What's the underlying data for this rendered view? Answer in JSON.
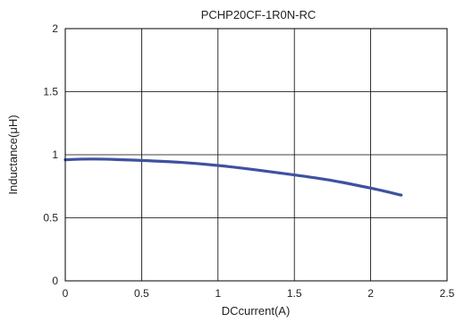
{
  "chart_data": {
    "type": "line",
    "title": "PCHP20CF-1R0N-RC",
    "xlabel": "DCcurrent(A)",
    "ylabel": "Inductance(μH)",
    "xlim": [
      0,
      2.5
    ],
    "ylim": [
      0,
      2
    ],
    "x_ticks": [
      "0",
      "0.5",
      "1",
      "1.5",
      "2",
      "2.5"
    ],
    "y_ticks": [
      "0",
      "0.5",
      "1",
      "1.5",
      "2"
    ],
    "grid": true,
    "series": [
      {
        "color": "#3f51a0",
        "points": [
          [
            0,
            0.96
          ],
          [
            0.1,
            0.965
          ],
          [
            0.25,
            0.965
          ],
          [
            0.5,
            0.955
          ],
          [
            0.75,
            0.94
          ],
          [
            1.0,
            0.915
          ],
          [
            1.25,
            0.88
          ],
          [
            1.5,
            0.84
          ],
          [
            1.75,
            0.795
          ],
          [
            2.0,
            0.735
          ],
          [
            2.2,
            0.68
          ]
        ]
      }
    ]
  }
}
